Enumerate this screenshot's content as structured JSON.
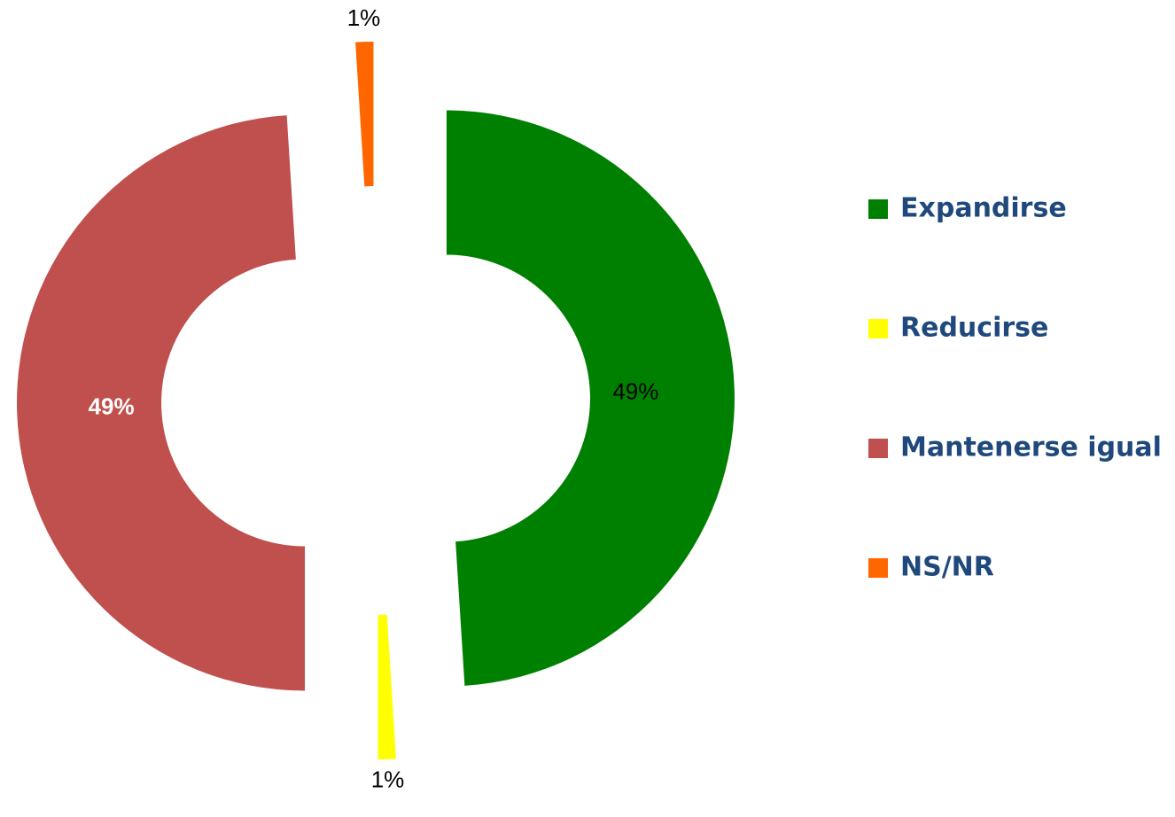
{
  "chart_data": {
    "type": "donut",
    "categories": [
      "Expandirse",
      "Reducirse",
      "Mantenerse igual",
      "NS/NR"
    ],
    "values": [
      49,
      1,
      49,
      1
    ],
    "value_labels": [
      "49%",
      "1%",
      "49%",
      "1%"
    ],
    "colors": [
      "#008000",
      "#ffff00",
      "#c0504d",
      "#ff6600"
    ],
    "legend": "right"
  }
}
